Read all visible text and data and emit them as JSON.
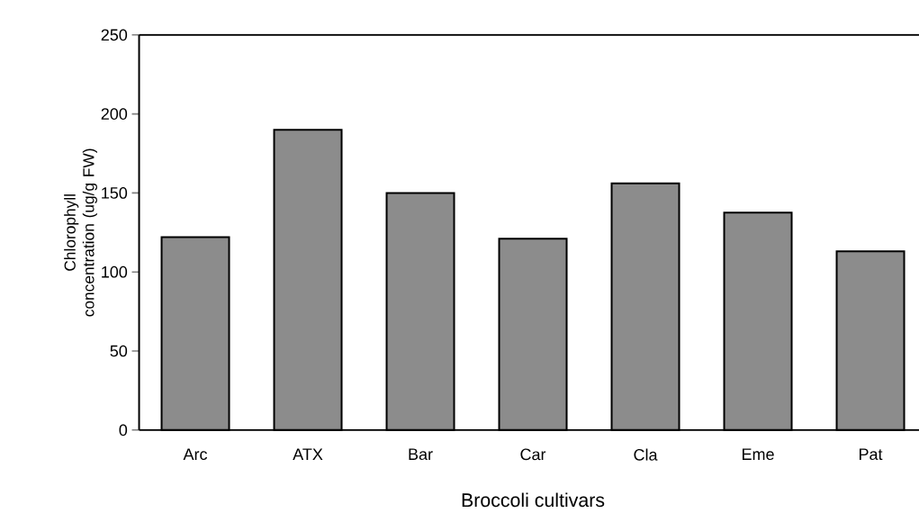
{
  "chart_data": {
    "type": "bar",
    "xlabel": "Broccoli cultivars",
    "ylabel": "Chlorophyll concentration (ug/g FW)",
    "categories": [
      "Arc",
      "ATX",
      "Bar",
      "Car",
      "Cla",
      "Eme",
      "Pat"
    ],
    "values": [
      122,
      190,
      150,
      121,
      156,
      137.5,
      113
    ],
    "color": "#8c8c8c",
    "ylim": [
      0,
      250
    ],
    "yticks": [
      0,
      50,
      100,
      150,
      200,
      250
    ],
    "grid": false
  }
}
